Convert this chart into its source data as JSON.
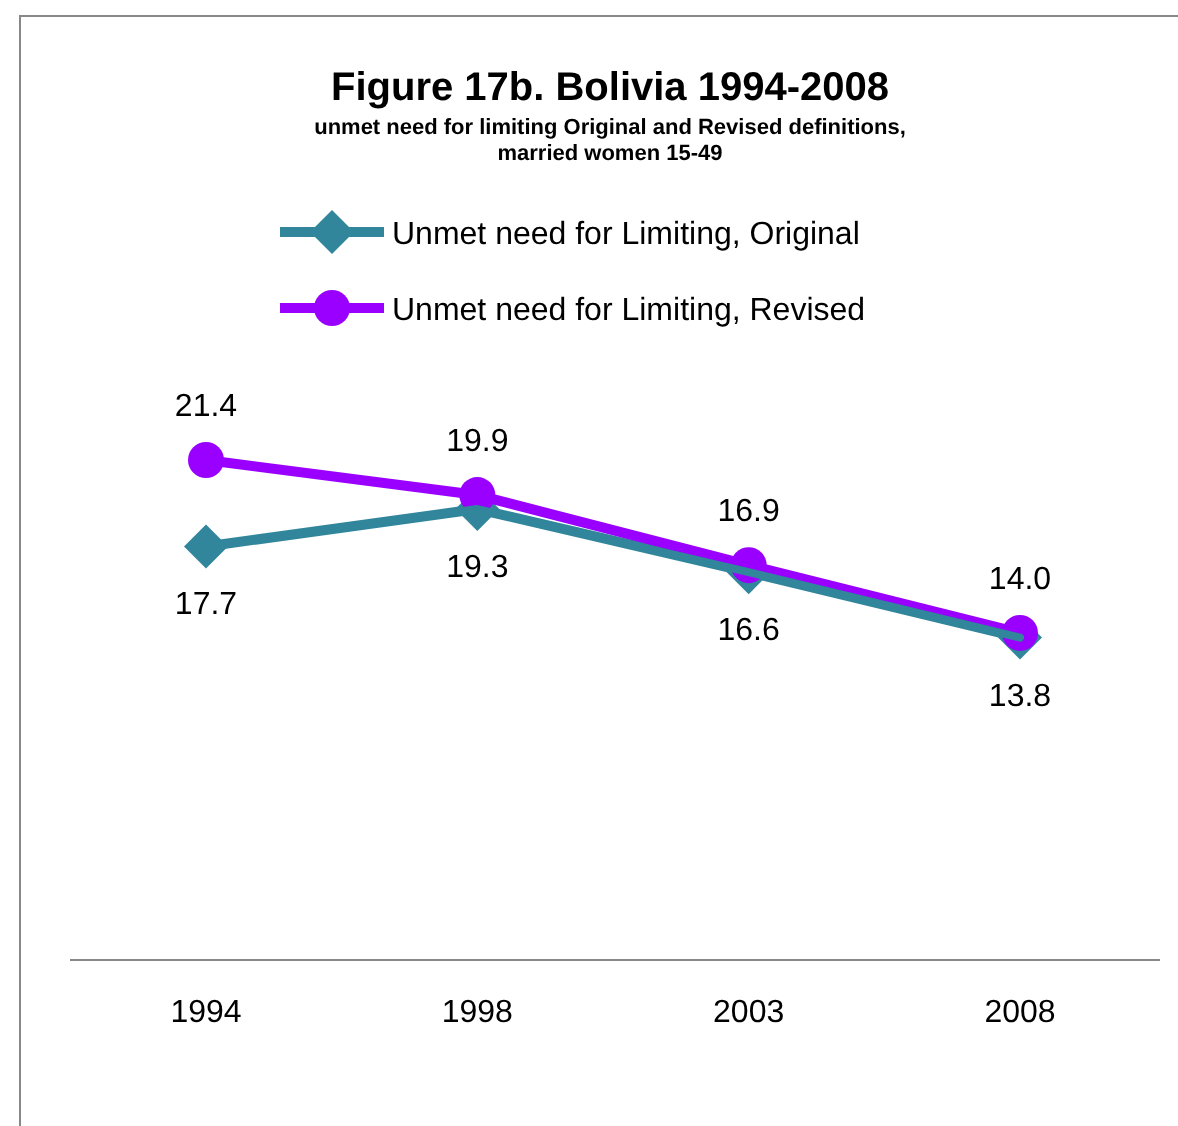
{
  "chart_data": {
    "type": "line",
    "title": "Figure 17b. Bolivia 1994-2008",
    "subtitle": "unmet need for limiting Original and Revised definitions, married women 15-49",
    "categories": [
      "1994",
      "1998",
      "2003",
      "2008"
    ],
    "series": [
      {
        "name": "Unmet need for Limiting, Original",
        "color": "#31869b",
        "marker": "diamond",
        "values": [
          17.7,
          19.3,
          16.6,
          13.8
        ],
        "value_labels": [
          "17.7",
          "19.3",
          "16.6",
          "13.8"
        ]
      },
      {
        "name": "Unmet need for Limiting, Revised",
        "color": "#9900ff",
        "marker": "circle",
        "values": [
          21.4,
          19.9,
          16.9,
          14.0
        ],
        "value_labels": [
          "21.4",
          "19.9",
          "16.9",
          "14.0"
        ]
      }
    ],
    "legend": "top"
  }
}
